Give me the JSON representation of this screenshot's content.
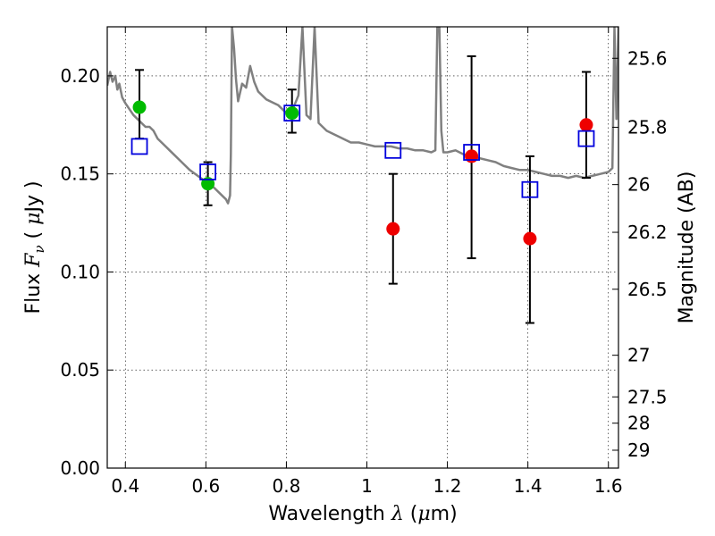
{
  "chart_data": {
    "type": "scatter",
    "title": "",
    "xlabel": {
      "prefix": "Wavelength  ",
      "symbol": "λ",
      "unit_open": " (",
      "unit_symbol": "μ",
      "unit_rest": "m)"
    },
    "ylabel": {
      "prefix": "Flux  ",
      "symbol": "F",
      "subscript": "ν",
      "unit_open": " ( ",
      "unit_symbol": "μ",
      "unit_rest": "Jy )"
    },
    "y2label": "Magnitude (AB)",
    "xlim": [
      0.355,
      1.625
    ],
    "ylim": [
      0.0,
      0.225
    ],
    "grid": true,
    "x_ticks": [
      {
        "value": 0.4,
        "label": "0.4"
      },
      {
        "value": 0.6,
        "label": "0.6"
      },
      {
        "value": 0.8,
        "label": "0.8"
      },
      {
        "value": 1.0,
        "label": "1"
      },
      {
        "value": 1.2,
        "label": "1.2"
      },
      {
        "value": 1.4,
        "label": "1.4"
      },
      {
        "value": 1.6,
        "label": "1.6"
      }
    ],
    "y_ticks": [
      {
        "value": 0.0,
        "label": "0.00"
      },
      {
        "value": 0.05,
        "label": "0.05"
      },
      {
        "value": 0.1,
        "label": "0.10"
      },
      {
        "value": 0.15,
        "label": "0.15"
      },
      {
        "value": 0.2,
        "label": "0.20"
      }
    ],
    "y2_ticks": [
      {
        "value": 25.6,
        "label": "25.6"
      },
      {
        "value": 25.8,
        "label": "25.8"
      },
      {
        "value": 26.0,
        "label": "26"
      },
      {
        "value": 26.2,
        "label": "26.2"
      },
      {
        "value": 26.5,
        "label": "26.5"
      },
      {
        "value": 27.0,
        "label": "27"
      },
      {
        "value": 27.5,
        "label": "27.5"
      },
      {
        "value": 28.0,
        "label": "28"
      },
      {
        "value": 29.0,
        "label": "29"
      }
    ],
    "colors": {
      "green": "#00bb00",
      "red": "#ee0000",
      "model": "#808080",
      "box": "#0000dd",
      "err": "#000000"
    },
    "series": [
      {
        "name": "observed_green",
        "marker": "circle",
        "points": [
          {
            "x": 0.435,
            "y": 0.184,
            "err_low": 0.168,
            "err_high": 0.203
          },
          {
            "x": 0.605,
            "y": 0.145,
            "err_low": 0.134,
            "err_high": 0.156
          },
          {
            "x": 0.814,
            "y": 0.181,
            "err_low": 0.171,
            "err_high": 0.193
          }
        ]
      },
      {
        "name": "observed_red",
        "marker": "circle",
        "points": [
          {
            "x": 1.065,
            "y": 0.122,
            "err_low": 0.094,
            "err_high": 0.15
          },
          {
            "x": 1.26,
            "y": 0.159,
            "err_low": 0.107,
            "err_high": 0.21
          },
          {
            "x": 1.405,
            "y": 0.117,
            "err_low": 0.074,
            "err_high": 0.159
          },
          {
            "x": 1.545,
            "y": 0.175,
            "err_low": 0.148,
            "err_high": 0.202
          }
        ]
      },
      {
        "name": "model_photometry",
        "marker": "square",
        "points": [
          {
            "x": 0.435,
            "y": 0.164
          },
          {
            "x": 0.605,
            "y": 0.151
          },
          {
            "x": 0.814,
            "y": 0.181
          },
          {
            "x": 1.065,
            "y": 0.162
          },
          {
            "x": 1.26,
            "y": 0.161
          },
          {
            "x": 1.405,
            "y": 0.142
          },
          {
            "x": 1.545,
            "y": 0.168
          }
        ]
      }
    ],
    "model_spectrum": {
      "x": [
        0.355,
        0.362,
        0.368,
        0.375,
        0.38,
        0.385,
        0.392,
        0.4,
        0.41,
        0.42,
        0.43,
        0.44,
        0.45,
        0.46,
        0.47,
        0.48,
        0.49,
        0.5,
        0.51,
        0.52,
        0.54,
        0.56,
        0.58,
        0.6,
        0.62,
        0.64,
        0.65,
        0.655,
        0.66,
        0.662,
        0.665,
        0.67,
        0.675,
        0.68,
        0.69,
        0.7,
        0.71,
        0.72,
        0.73,
        0.75,
        0.77,
        0.78,
        0.79,
        0.8,
        0.81,
        0.82,
        0.83,
        0.84,
        0.85,
        0.86,
        0.87,
        0.88,
        0.9,
        0.92,
        0.94,
        0.96,
        0.98,
        1.0,
        1.02,
        1.04,
        1.06,
        1.08,
        1.1,
        1.12,
        1.14,
        1.16,
        1.17,
        1.175,
        1.18,
        1.185,
        1.19,
        1.2,
        1.22,
        1.24,
        1.26,
        1.28,
        1.3,
        1.32,
        1.34,
        1.36,
        1.38,
        1.4,
        1.42,
        1.44,
        1.46,
        1.48,
        1.5,
        1.52,
        1.54,
        1.56,
        1.58,
        1.6,
        1.61,
        1.615,
        1.62,
        1.625
      ],
      "y": [
        0.195,
        0.202,
        0.197,
        0.2,
        0.193,
        0.196,
        0.189,
        0.186,
        0.183,
        0.18,
        0.178,
        0.176,
        0.174,
        0.174,
        0.172,
        0.168,
        0.166,
        0.164,
        0.162,
        0.16,
        0.156,
        0.152,
        0.149,
        0.146,
        0.143,
        0.139,
        0.137,
        0.135,
        0.139,
        0.16,
        0.225,
        0.214,
        0.198,
        0.187,
        0.196,
        0.194,
        0.205,
        0.197,
        0.192,
        0.188,
        0.186,
        0.185,
        0.183,
        0.181,
        0.18,
        0.185,
        0.19,
        0.225,
        0.18,
        0.178,
        0.225,
        0.176,
        0.172,
        0.17,
        0.168,
        0.166,
        0.166,
        0.165,
        0.164,
        0.164,
        0.164,
        0.163,
        0.163,
        0.162,
        0.162,
        0.161,
        0.162,
        0.225,
        0.225,
        0.172,
        0.161,
        0.161,
        0.162,
        0.16,
        0.159,
        0.158,
        0.157,
        0.156,
        0.154,
        0.153,
        0.152,
        0.152,
        0.151,
        0.15,
        0.149,
        0.149,
        0.148,
        0.149,
        0.148,
        0.149,
        0.15,
        0.151,
        0.153,
        0.225,
        0.178,
        0.225
      ]
    }
  }
}
